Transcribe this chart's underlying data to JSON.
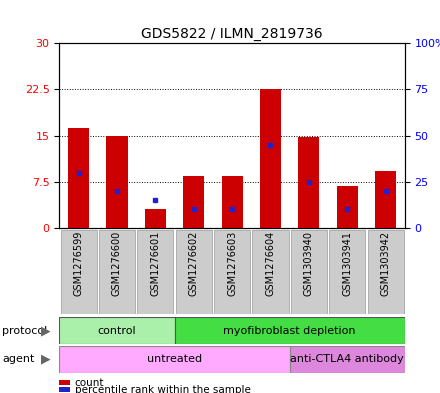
{
  "title": "GDS5822 / ILMN_2819736",
  "samples": [
    "GSM1276599",
    "GSM1276600",
    "GSM1276601",
    "GSM1276602",
    "GSM1276603",
    "GSM1276604",
    "GSM1303940",
    "GSM1303941",
    "GSM1303942"
  ],
  "count_values": [
    16.2,
    14.9,
    3.0,
    8.5,
    8.5,
    22.5,
    14.8,
    6.8,
    9.2
  ],
  "percentile_values": [
    30,
    20,
    15,
    10,
    10,
    45,
    25,
    10,
    20
  ],
  "left_ylim": [
    0,
    30
  ],
  "right_ylim": [
    0,
    100
  ],
  "left_yticks": [
    0,
    7.5,
    15,
    22.5,
    30
  ],
  "right_yticks": [
    0,
    25,
    50,
    75,
    100
  ],
  "right_yticklabels": [
    "0",
    "25",
    "50",
    "75",
    "100%"
  ],
  "bar_color": "#cc0000",
  "marker_color": "#2222cc",
  "bar_width": 0.55,
  "protocol_groups": [
    {
      "label": "control",
      "start": 0,
      "end": 2,
      "color": "#aaf0aa"
    },
    {
      "label": "myofibroblast depletion",
      "start": 3,
      "end": 8,
      "color": "#44dd44"
    }
  ],
  "agent_groups": [
    {
      "label": "untreated",
      "start": 0,
      "end": 5,
      "color": "#ffaaff"
    },
    {
      "label": "anti-CTLA4 antibody",
      "start": 6,
      "end": 8,
      "color": "#dd88dd"
    }
  ],
  "legend_items": [
    {
      "label": "count",
      "color": "#cc0000"
    },
    {
      "label": "percentile rank within the sample",
      "color": "#2222cc"
    }
  ],
  "xtick_bg": "#cccccc",
  "plot_bg": "#ffffff"
}
